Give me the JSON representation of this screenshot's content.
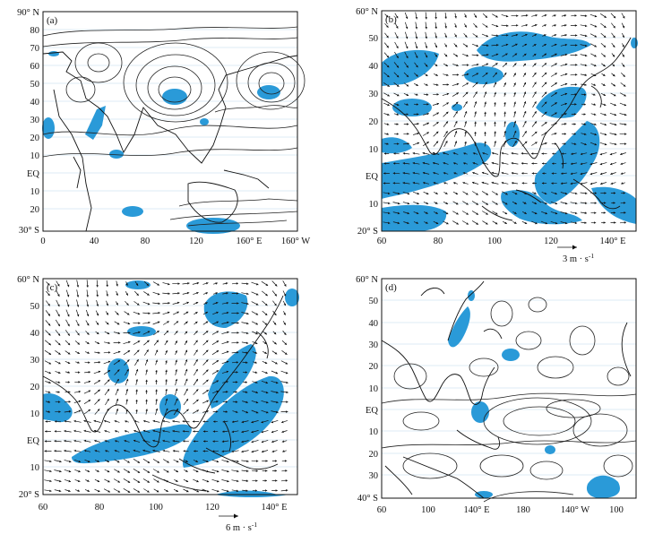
{
  "panels": [
    {
      "label": "(a)",
      "y_ticks": [
        "90° N",
        "80",
        "70",
        "60",
        "50",
        "40",
        "30",
        "20",
        "10",
        "EQ",
        "10",
        "20",
        "30° S"
      ],
      "x_ticks": [
        "0",
        "40",
        "80",
        "120",
        "160° E",
        "160° W"
      ]
    },
    {
      "label": "(b)",
      "y_ticks": [
        "60° N",
        "50",
        "40",
        "30",
        "20",
        "10",
        "EQ",
        "10",
        "20° S"
      ],
      "x_ticks": [
        "60",
        "80",
        "100",
        "120",
        "140° E"
      ],
      "reference_vector": "3 m · s",
      "reference_unit_sup": "-1"
    },
    {
      "label": "(c)",
      "y_ticks": [
        "60° N",
        "50",
        "40",
        "30",
        "20",
        "10",
        "EQ",
        "10",
        "20° S"
      ],
      "x_ticks": [
        "60",
        "80",
        "100",
        "120",
        "140° E"
      ],
      "reference_vector": "6 m · s",
      "reference_unit_sup": "-1"
    },
    {
      "label": "(d)",
      "y_ticks": [
        "60° N",
        "50",
        "40",
        "30",
        "20",
        "10",
        "EQ",
        "10",
        "20",
        "30",
        "40° S"
      ],
      "x_ticks": [
        "60",
        "100",
        "140° E",
        "180",
        "140° W",
        "100"
      ]
    }
  ],
  "colors": {
    "shading": "#2a9ad8",
    "latitude_lines": "#b9d8ea",
    "lines": "#111111"
  }
}
